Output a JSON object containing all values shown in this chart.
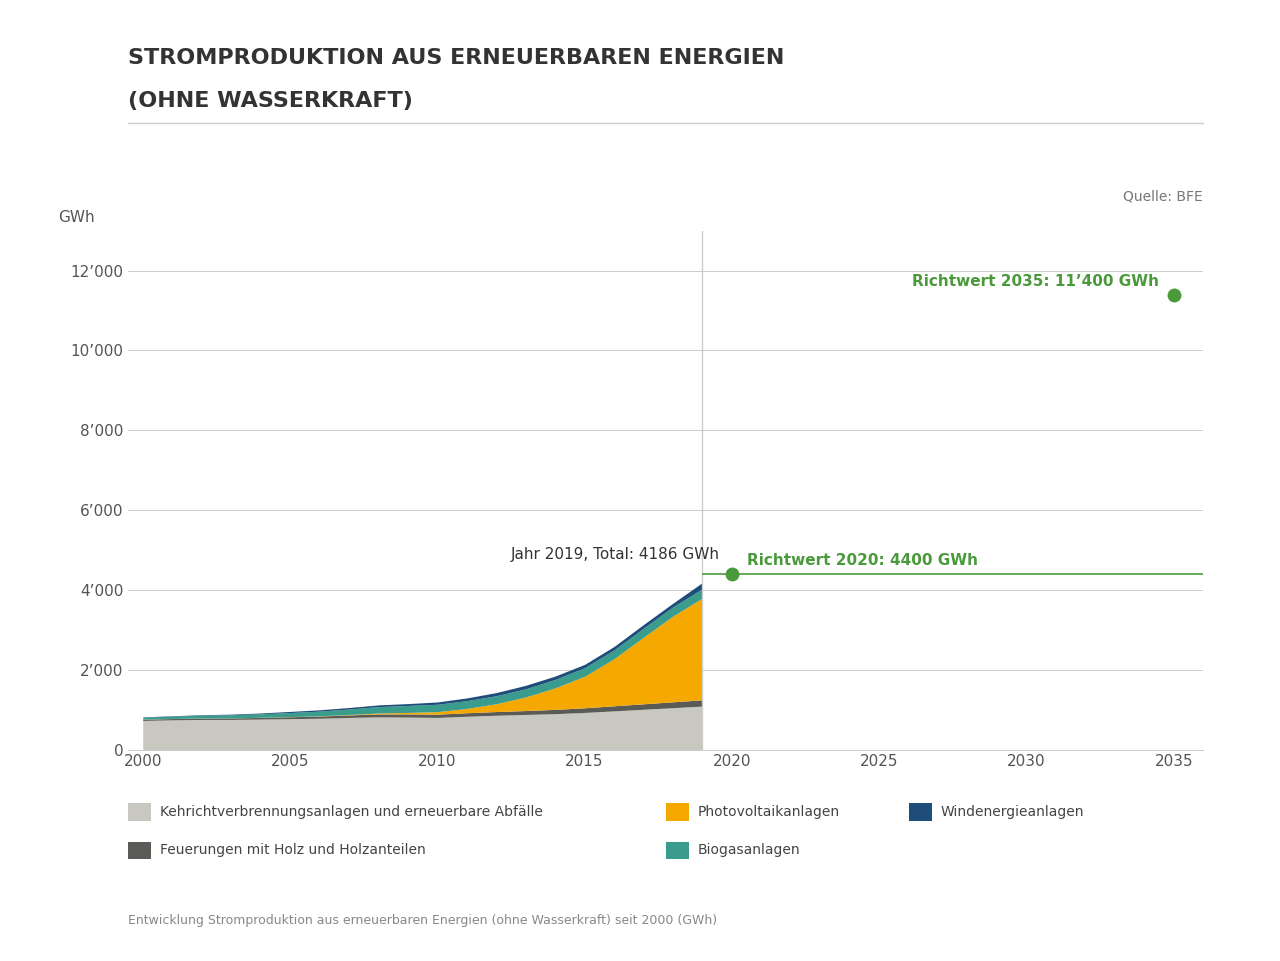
{
  "title_line1": "STROMPRODUKTION AUS ERNEUERBAREN ENERGIEN",
  "title_line2": "(OHNE WASSERKRAFT)",
  "ylabel": "GWh",
  "source": "Quelle: BFE",
  "footnote": "Entwicklung Stromproduktion aus erneuerbaren Energien (ohne Wasserkraft) seit 2000 (GWh)",
  "bg_color": "#ffffff",
  "plot_bg_color": "#ffffff",
  "years_hist": [
    2000,
    2001,
    2002,
    2003,
    2004,
    2005,
    2006,
    2007,
    2008,
    2009,
    2010,
    2011,
    2012,
    2013,
    2014,
    2015,
    2016,
    2017,
    2018,
    2019
  ],
  "kehricht": [
    730,
    745,
    755,
    755,
    765,
    775,
    785,
    805,
    820,
    815,
    805,
    835,
    860,
    880,
    900,
    930,
    970,
    1010,
    1050,
    1090
  ],
  "feuerung": [
    30,
    32,
    34,
    37,
    41,
    47,
    54,
    63,
    73,
    78,
    83,
    88,
    93,
    98,
    107,
    117,
    127,
    137,
    147,
    157
  ],
  "photovoltaik": [
    2,
    2,
    2,
    2,
    3,
    4,
    7,
    11,
    23,
    38,
    62,
    108,
    195,
    340,
    540,
    790,
    1180,
    1670,
    2150,
    2550
  ],
  "biogas": [
    48,
    58,
    68,
    78,
    88,
    102,
    117,
    137,
    160,
    175,
    185,
    195,
    200,
    205,
    210,
    215,
    220,
    225,
    230,
    235
  ],
  "wind": [
    9,
    11,
    14,
    16,
    20,
    28,
    33,
    38,
    43,
    46,
    58,
    68,
    80,
    87,
    85,
    83,
    87,
    92,
    92,
    154
  ],
  "colors": {
    "kehricht": "#c8c8c0",
    "feuerung": "#5a5a56",
    "photovoltaik": "#f5a800",
    "biogas": "#3a9c8c",
    "wind": "#1e4d7a"
  },
  "richtwert_2020_value": 4400,
  "richtwert_2020_year": 2020,
  "richtwert_2020_label": "Richtwert 2020: 4400 GWh",
  "richtwert_2035_value": 11400,
  "richtwert_2035_year": 2035,
  "richtwert_2035_label": "Richtwert 2035: 11’400 GWh",
  "annotation_2019_label": "Jahr 2019, Total: 4186 GWh",
  "richtwert_color": "#4a9a3c",
  "xmin": 1999.5,
  "xmax": 2036,
  "ymin": 0,
  "ymax": 13000,
  "yticks": [
    0,
    2000,
    4000,
    6000,
    8000,
    10000,
    12000
  ],
  "ytick_labels": [
    "0",
    "2’000",
    "4’000",
    "6’000",
    "8’000",
    "10’000",
    "12’000"
  ],
  "xticks": [
    2000,
    2005,
    2010,
    2015,
    2020,
    2025,
    2030,
    2035
  ],
  "legend_items": [
    {
      "label": "Kehrichtverbrennungsanlagen und erneuerbare Abfälle",
      "color": "#c8c8c0"
    },
    {
      "label": "Photovoltaikanlagen",
      "color": "#f5a800"
    },
    {
      "label": "Windenergieanlagen",
      "color": "#1e4d7a"
    },
    {
      "label": "Feuerungen mit Holz und Holzanteilen",
      "color": "#5a5a56"
    },
    {
      "label": "Biogasanlagen",
      "color": "#3a9c8c"
    }
  ]
}
